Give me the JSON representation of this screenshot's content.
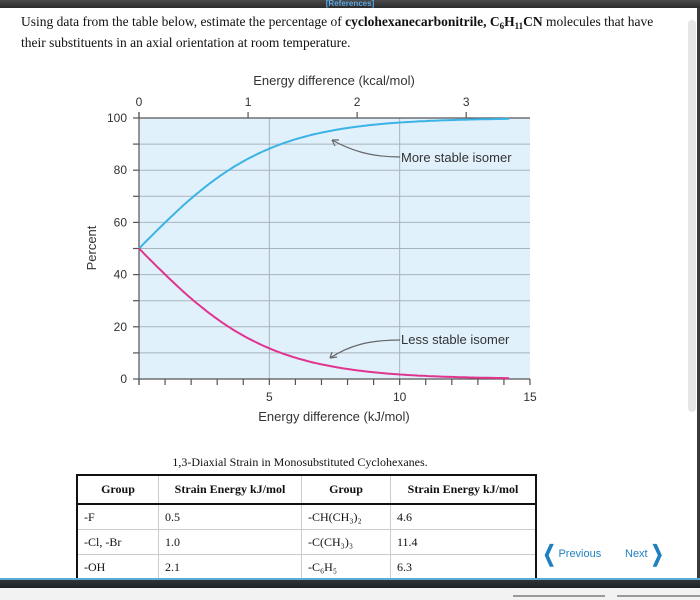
{
  "header": {
    "references_label": "[References]"
  },
  "question": {
    "text_before": "Using data from the table below, estimate the percentage of ",
    "compound_name": "cyclohexanecarbonitrile, C",
    "formula_sub1": "6",
    "formula_mid": "H",
    "formula_sub2": "11",
    "formula_end": "CN",
    "text_after": " molecules that have their substituents in an axial orientation at room temperature."
  },
  "chart_data": {
    "type": "line",
    "title": "",
    "xlabel": "Energy difference (kJ/mol)",
    "x2label": "Energy difference (kcal/mol)",
    "ylabel": "Percent",
    "xlim": [
      0,
      15
    ],
    "ylim": [
      0,
      100
    ],
    "x_ticks": [
      "5",
      "10",
      "15"
    ],
    "x2_ticks": [
      "0",
      "1",
      "2",
      "3"
    ],
    "y_ticks": [
      "0",
      "20",
      "40",
      "60",
      "80",
      "100"
    ],
    "grid": true,
    "x": [
      0,
      1,
      2,
      3,
      4,
      5,
      6,
      7,
      8,
      9,
      10,
      11,
      12,
      13,
      14.2
    ],
    "series": [
      {
        "name": "More stable isomer",
        "color": "#3bb3e6",
        "values": [
          50,
          60.0,
          69.1,
          77.0,
          83.4,
          88.2,
          91.8,
          94.4,
          96.2,
          97.4,
          98.3,
          98.8,
          99.2,
          99.5,
          99.7
        ]
      },
      {
        "name": "Less stable isomer",
        "color": "#e0358f",
        "values": [
          50,
          40.0,
          30.9,
          23.0,
          16.6,
          11.8,
          8.2,
          5.6,
          3.8,
          2.6,
          1.7,
          1.2,
          0.8,
          0.5,
          0.3
        ]
      }
    ],
    "annotations": [
      {
        "text": "More stable isomer",
        "points_to_x": 7.5
      },
      {
        "text": "Less stable isomer",
        "points_to_x": 7.5
      }
    ]
  },
  "table": {
    "caption": "1,3-Diaxial Strain in Monosubstituted Cyclohexanes.",
    "headers": [
      "Group",
      "Strain Energy kJ/mol",
      "Group",
      "Strain Energy kJ/mol"
    ],
    "rows": [
      [
        "-F",
        "0.5",
        "-CH(CH₃)₂",
        "4.6"
      ],
      [
        "-Cl, -Br",
        "1.0",
        "-C(CH₃)₃",
        "11.4"
      ],
      [
        "-OH",
        "2.1",
        "-C₆H₅",
        "6.3"
      ]
    ]
  },
  "nav": {
    "previous_label": "Previous",
    "next_label": "Next",
    "accent_color": "#1f7fc1"
  }
}
